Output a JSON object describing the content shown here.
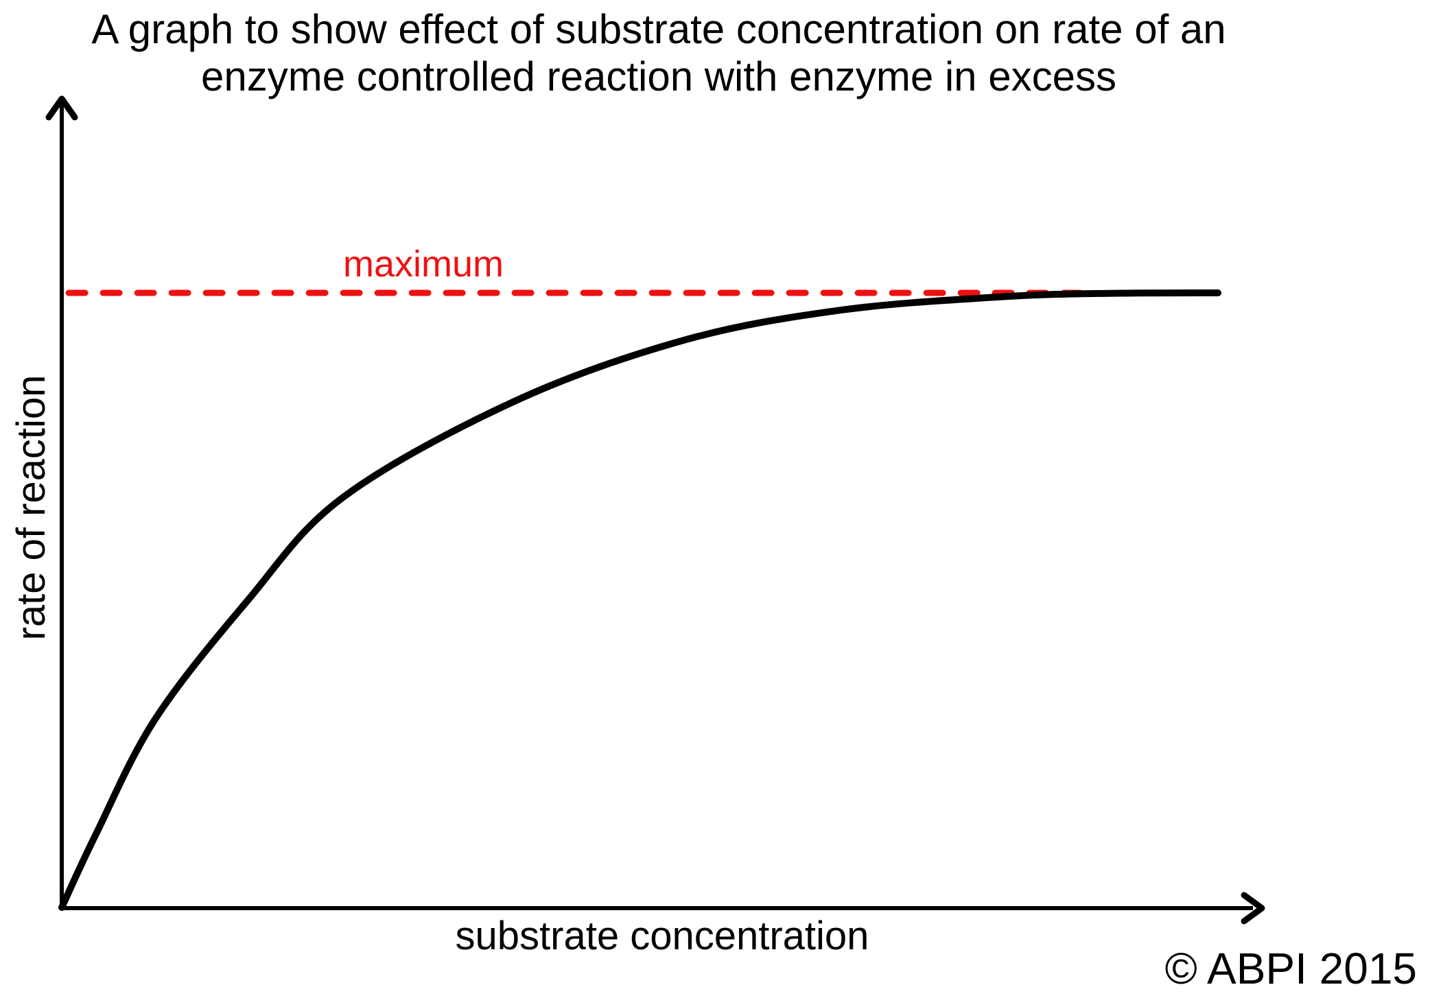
{
  "title": {
    "lines": [
      "A graph to show effect of substrate concentration on rate of an",
      "enzyme controlled reaction with enzyme in excess"
    ]
  },
  "y_axis": {
    "label": "rate of reaction"
  },
  "x_axis": {
    "label": "substrate concentration"
  },
  "footer": {
    "copyright": "© ABPI 2015"
  },
  "colors": {
    "curve": "#000000",
    "axis": "#000000",
    "max_line": "#ee1111",
    "background": "#ffffff",
    "text": "#000000"
  },
  "chart_data": {
    "type": "line",
    "title": "A graph to show effect of substrate concentration on rate of an enzyme controlled reaction with enzyme in excess",
    "xlabel": "substrate concentration",
    "ylabel": "rate of reaction",
    "axes_numeric": false,
    "x_unit": "relative (no numeric scale shown)",
    "y_unit": "fraction of maximum rate (no numeric scale shown)",
    "x_range": [
      0,
      1
    ],
    "y_range": [
      0,
      1
    ],
    "grid": false,
    "legend": false,
    "series": [
      {
        "name": "rate of reaction vs substrate concentration",
        "color": "#000000",
        "x": [
          0,
          0.03,
          0.081,
          0.161,
          0.243,
          0.392,
          0.54,
          0.674,
          0.807,
          0.896,
          1.0
        ],
        "y": [
          0,
          0.121,
          0.307,
          0.5,
          0.667,
          0.824,
          0.924,
          0.972,
          0.993,
          0.999,
          1.0
        ]
      }
    ],
    "annotations": [
      {
        "type": "hline",
        "label": "maximum",
        "y": 1.0,
        "x_start": 0.006,
        "x_end": 0.889,
        "style": "dashed",
        "color": "#ee1111"
      }
    ]
  }
}
